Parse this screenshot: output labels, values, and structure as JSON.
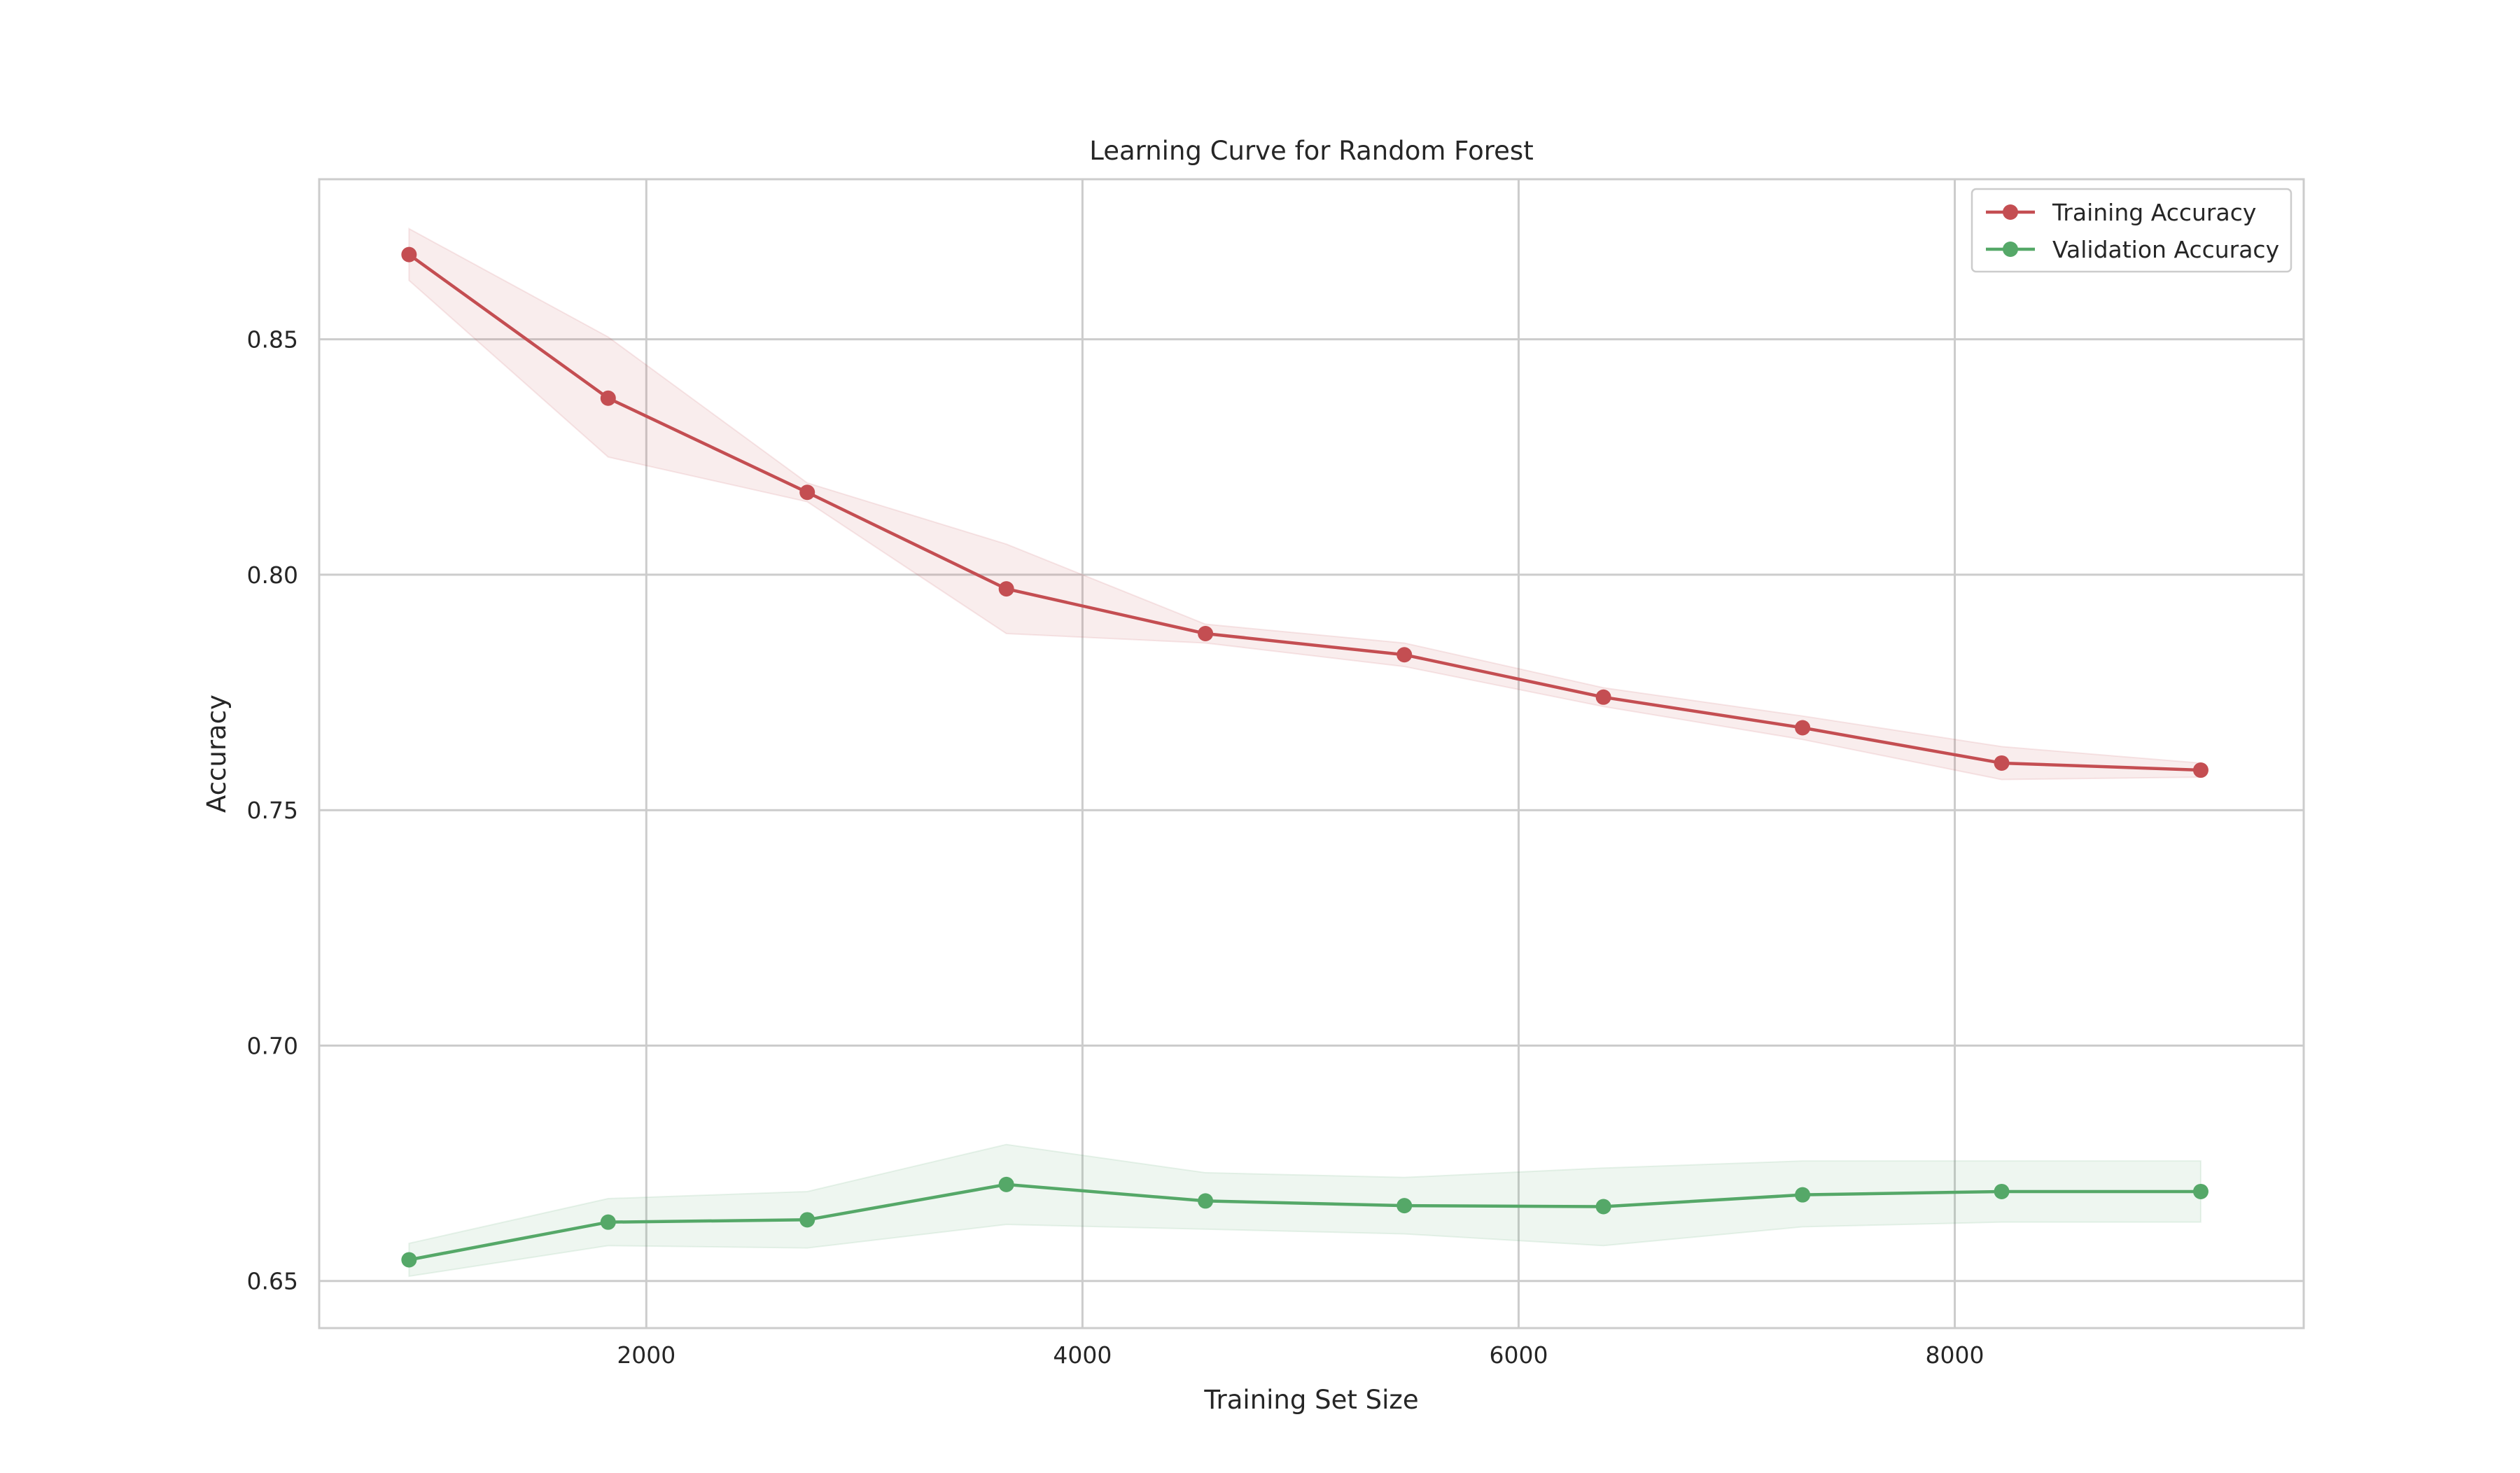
{
  "chart_data": {
    "type": "line",
    "title": "Learning Curve for Random Forest",
    "xlabel": "Training Set Size",
    "ylabel": "Accuracy",
    "xlim": [
      500,
      9600
    ],
    "ylim": [
      0.64,
      0.884
    ],
    "xticks": [
      2000,
      4000,
      6000,
      8000
    ],
    "xtick_labels": [
      "2000",
      "4000",
      "6000",
      "8000"
    ],
    "yticks": [
      0.65,
      0.7,
      0.75,
      0.8,
      0.85
    ],
    "ytick_labels": [
      "0.65",
      "0.70",
      "0.75",
      "0.80",
      "0.85"
    ],
    "grid": true,
    "legend_position": "top-right",
    "x": [
      912,
      1825,
      2738,
      3651,
      4564,
      5476,
      6389,
      7302,
      8215,
      9128
    ],
    "series": [
      {
        "name": "Training Accuracy",
        "color": "#c44e52",
        "values": [
          0.868,
          0.8375,
          0.8175,
          0.797,
          0.7875,
          0.783,
          0.774,
          0.7675,
          0.76,
          0.7585
        ],
        "band_lower": [
          0.8625,
          0.825,
          0.8155,
          0.7875,
          0.7855,
          0.7805,
          0.772,
          0.765,
          0.7565,
          0.757
        ],
        "band_upper": [
          0.8735,
          0.8505,
          0.8195,
          0.8065,
          0.7895,
          0.7855,
          0.776,
          0.77,
          0.7635,
          0.76
        ]
      },
      {
        "name": "Validation Accuracy",
        "color": "#55a868",
        "values": [
          0.6545,
          0.6625,
          0.663,
          0.6705,
          0.667,
          0.666,
          0.6658,
          0.6683,
          0.669,
          0.669
        ],
        "band_lower": [
          0.651,
          0.6575,
          0.657,
          0.662,
          0.661,
          0.66,
          0.6575,
          0.6615,
          0.6625,
          0.6625
        ],
        "band_upper": [
          0.658,
          0.6675,
          0.669,
          0.679,
          0.673,
          0.672,
          0.674,
          0.6755,
          0.6755,
          0.6755
        ]
      }
    ]
  }
}
